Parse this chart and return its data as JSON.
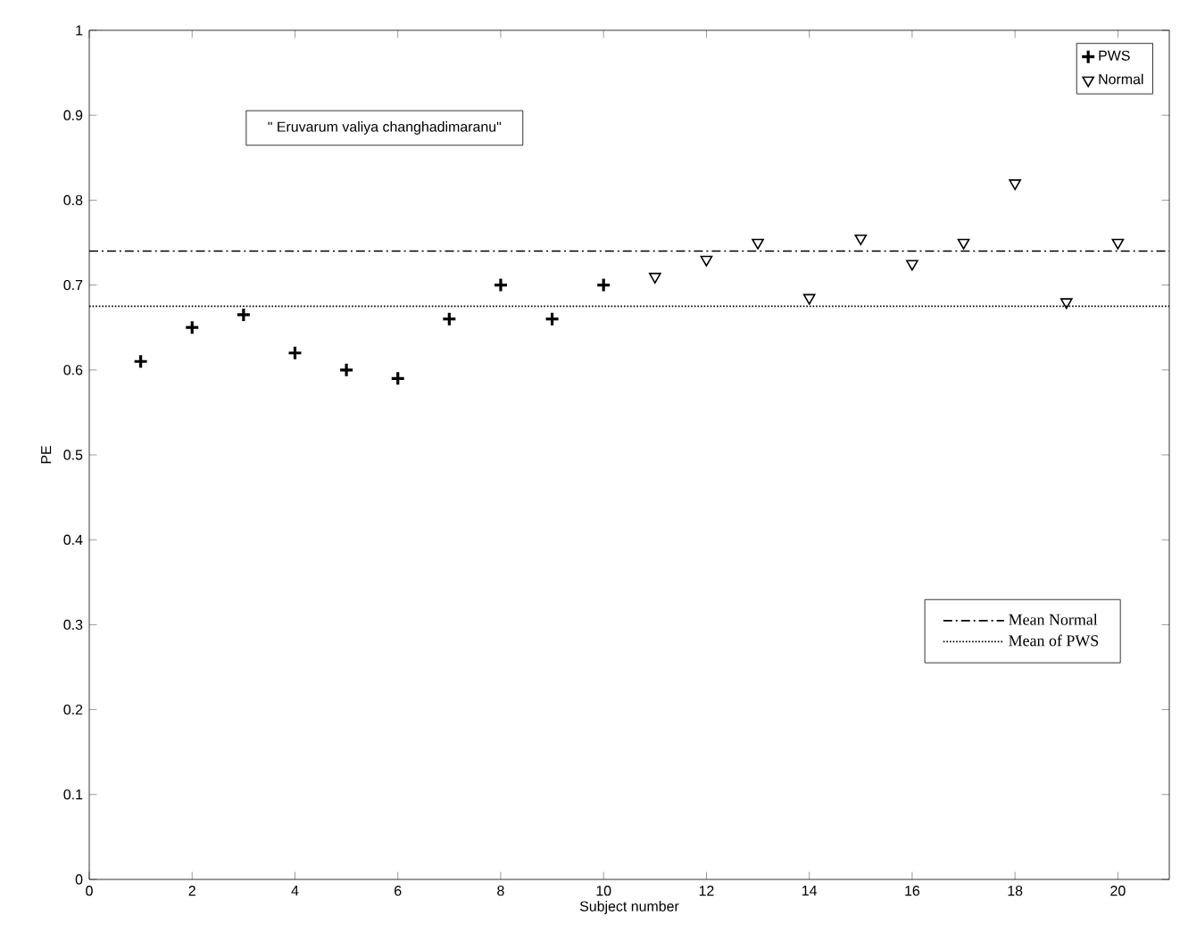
{
  "chart_data": {
    "type": "scatter",
    "xlabel": "Subject number",
    "ylabel": "PE",
    "series": [
      {
        "name": "PWS",
        "color": "#000000",
        "marker": "cross",
        "x": [
          1,
          2,
          3,
          4,
          5,
          6,
          7,
          8,
          9,
          10
        ],
        "values": [
          0.61,
          0.65,
          0.665,
          0.62,
          0.6,
          0.59,
          0.66,
          0.7,
          0.66,
          0.7
        ]
      },
      {
        "name": "Normal",
        "color": "#000000",
        "marker": "triangle",
        "x": [
          11,
          12,
          13,
          14,
          15,
          16,
          17,
          18,
          19,
          20
        ],
        "values": [
          0.71,
          0.73,
          0.75,
          0.685,
          0.755,
          0.725,
          0.75,
          0.82,
          0.68,
          0.75
        ]
      }
    ],
    "xlim": [
      0,
      21
    ],
    "ylim": [
      0,
      1
    ],
    "xticks": [
      0,
      2,
      4,
      6,
      8,
      10,
      12,
      14,
      16,
      18,
      20
    ],
    "yticks": [
      0,
      0.1,
      0.2,
      0.3,
      0.4,
      0.5,
      0.6,
      0.7,
      0.8,
      0.9,
      1
    ],
    "ref_lines": [
      {
        "axis": "y",
        "value": 0.74,
        "label": "Mean Normal",
        "color": "#000000",
        "line_style": "dashed"
      },
      {
        "axis": "y",
        "value": 0.675,
        "label": "Mean of PWS",
        "color": "#000000",
        "line_style": "dotted"
      }
    ],
    "annotations": [
      "\" Eruvarum valiya changhadimaranu\""
    ],
    "legend": "top right",
    "grid": false
  }
}
